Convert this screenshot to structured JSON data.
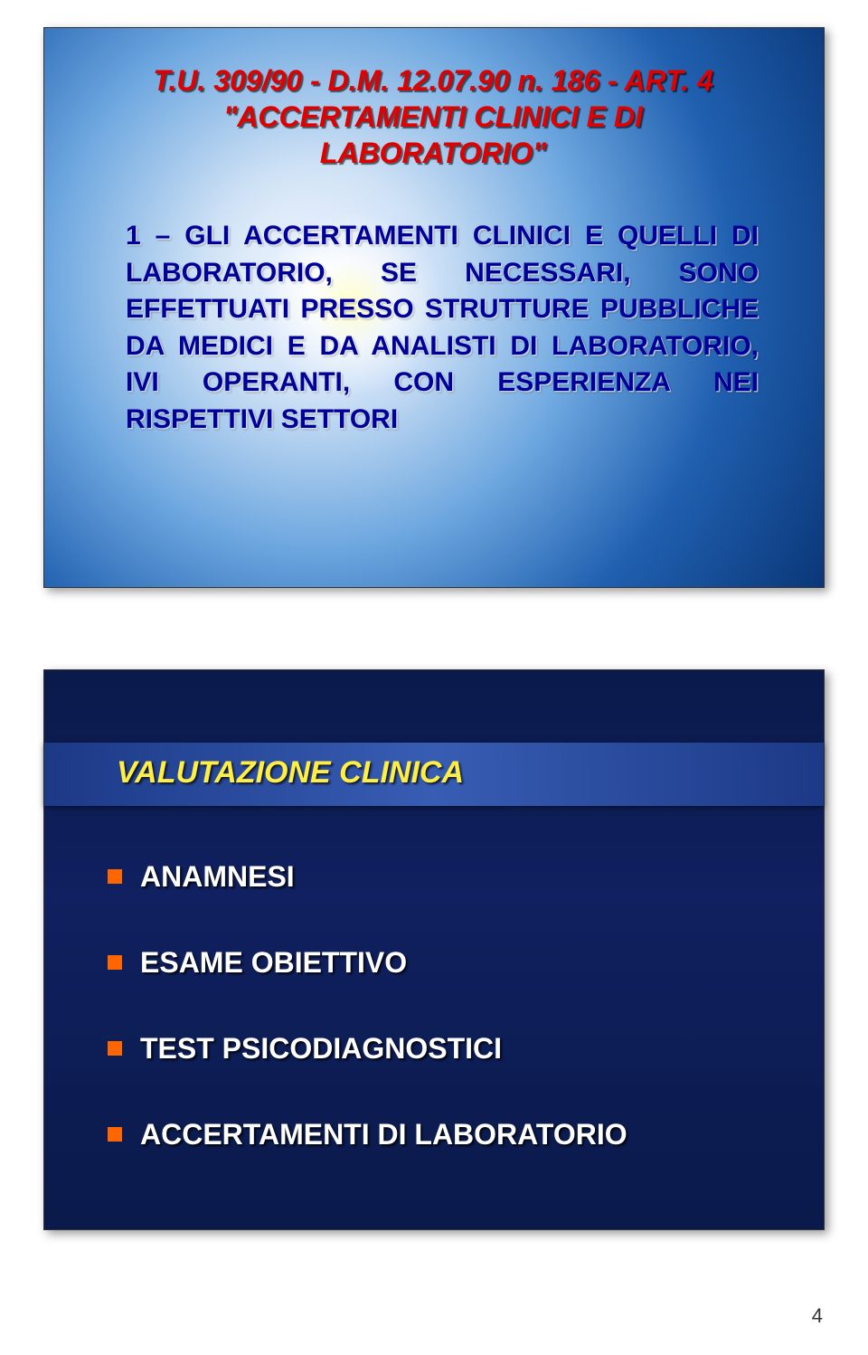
{
  "slide1": {
    "header_line1": "T.U. 309/90 - D.M. 12.07.90 n. 186 -  ART. 4",
    "header_line2": "\"ACCERTAMENTI CLINICI E DI",
    "header_line3": "LABORATORIO\"",
    "body": "1 – GLI ACCERTAMENTI CLINICI E QUELLI DI LABORATORIO, SE NECESSARI, SONO EFFETTUATI PRESSO STRUTTURE PUBBLICHE DA MEDICI E DA ANALISTI DI LABORATORIO, IVI OPERANTI, CON ESPERIENZA NEI RISPETTIVI SETTORI",
    "header_color": "#e00000",
    "body_color": "#000099",
    "title_fontsize": 32,
    "body_fontsize": 30
  },
  "slide2": {
    "title": "VALUTAZIONE CLINICA",
    "title_color": "#ffee44",
    "bullet_color": "#ff6600",
    "text_color": "#ffffff",
    "background_color": "#0a1a4a",
    "band_color": "#2a50a0",
    "title_fontsize": 34,
    "item_fontsize": 32,
    "items": [
      "ANAMNESI",
      "ESAME OBIETTIVO",
      "TEST PSICODIAGNOSTICI",
      "ACCERTAMENTI DI LABORATORIO"
    ]
  },
  "page_number": "4"
}
